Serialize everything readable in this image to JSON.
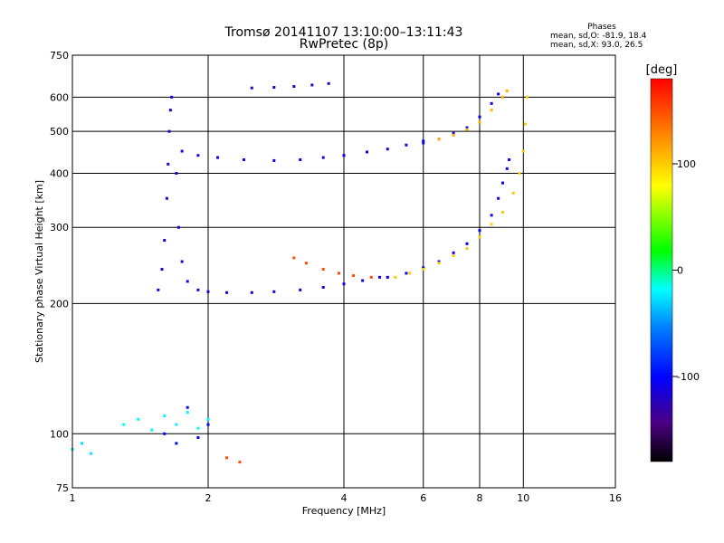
{
  "chart_data": {
    "type": "scatter",
    "title": "Tromsø 20141107 13:10:00–13:11:43",
    "subtitle": "RwPretec (8p)",
    "xlabel": "Frequency [MHz]",
    "ylabel": "Stationary phase Virtual Height [km]",
    "x_scale": "log",
    "y_scale": "log",
    "xlim": [
      1,
      16
    ],
    "ylim": [
      75,
      750
    ],
    "x_ticks": [
      "1",
      "2",
      "4",
      "6",
      "8",
      "10",
      "16"
    ],
    "y_ticks": [
      "75",
      "100",
      "200",
      "300",
      "400",
      "500",
      "600",
      "750"
    ],
    "grid": true,
    "stats": {
      "heading": "Phases",
      "line_o": "mean, sd,O: -81.9, 18.4",
      "line_x": "mean, sd,X:  93.0, 26.5"
    },
    "colorbar": {
      "label": "[deg]",
      "range": [
        -180,
        180
      ],
      "ticks": [
        "100",
        "0",
        "-100"
      ]
    },
    "series": [
      {
        "points": [
          [
            1.55,
            215
          ],
          [
            1.58,
            240
          ],
          [
            1.6,
            280
          ],
          [
            1.62,
            350
          ],
          [
            1.63,
            420
          ],
          [
            1.64,
            500
          ],
          [
            1.65,
            560
          ],
          [
            1.66,
            600
          ],
          [
            1.7,
            400
          ],
          [
            1.72,
            300
          ],
          [
            1.75,
            250
          ],
          [
            1.8,
            225
          ],
          [
            1.9,
            215
          ],
          [
            2.0,
            213
          ],
          [
            2.2,
            212
          ],
          [
            2.5,
            212
          ],
          [
            2.8,
            213
          ],
          [
            3.2,
            215
          ],
          [
            3.6,
            218
          ],
          [
            4.0,
            222
          ],
          [
            4.4,
            226
          ],
          [
            4.8,
            230
          ]
        ],
        "phase": -115
      },
      {
        "points": [
          [
            1.75,
            450
          ],
          [
            1.9,
            440
          ],
          [
            2.1,
            435
          ],
          [
            2.4,
            430
          ],
          [
            2.8,
            428
          ],
          [
            3.2,
            430
          ],
          [
            3.6,
            435
          ],
          [
            4.0,
            440
          ],
          [
            4.5,
            448
          ],
          [
            5.0,
            455
          ],
          [
            5.5,
            465
          ],
          [
            6.0,
            475
          ]
        ],
        "phase": -110
      },
      {
        "points": [
          [
            2.5,
            630
          ],
          [
            2.8,
            632
          ],
          [
            3.1,
            635
          ],
          [
            3.4,
            640
          ],
          [
            3.7,
            645
          ]
        ],
        "phase": -120
      },
      {
        "points": [
          [
            3.1,
            255
          ],
          [
            3.3,
            248
          ],
          [
            3.6,
            240
          ],
          [
            3.9,
            235
          ],
          [
            4.2,
            232
          ],
          [
            4.6,
            230
          ],
          [
            5.0,
            230
          ]
        ],
        "phase": 150
      },
      {
        "points": [
          [
            5.0,
            230
          ],
          [
            5.5,
            235
          ],
          [
            6.0,
            242
          ],
          [
            6.5,
            250
          ],
          [
            7.0,
            262
          ],
          [
            7.5,
            275
          ],
          [
            8.0,
            295
          ],
          [
            8.5,
            320
          ],
          [
            8.8,
            350
          ],
          [
            9.0,
            380
          ],
          [
            9.2,
            410
          ],
          [
            9.3,
            430
          ]
        ],
        "phase": -105
      },
      {
        "points": [
          [
            5.2,
            230
          ],
          [
            5.6,
            235
          ],
          [
            6.0,
            240
          ],
          [
            6.5,
            248
          ],
          [
            7.0,
            258
          ],
          [
            7.5,
            268
          ],
          [
            8.0,
            285
          ],
          [
            8.5,
            305
          ],
          [
            9.0,
            325
          ],
          [
            9.5,
            360
          ],
          [
            9.8,
            400
          ],
          [
            10.0,
            450
          ],
          [
            10.1,
            520
          ],
          [
            10.2,
            600
          ]
        ],
        "phase": 100
      },
      {
        "points": [
          [
            6.0,
            470
          ],
          [
            6.5,
            480
          ],
          [
            7.0,
            495
          ],
          [
            7.5,
            510
          ],
          [
            8.0,
            540
          ],
          [
            8.5,
            580
          ],
          [
            8.8,
            610
          ]
        ],
        "phase": -110
      },
      {
        "points": [
          [
            6.5,
            480
          ],
          [
            7.0,
            490
          ],
          [
            7.5,
            505
          ],
          [
            8.0,
            525
          ],
          [
            8.5,
            560
          ],
          [
            9.0,
            600
          ],
          [
            9.2,
            620
          ]
        ],
        "phase": 110
      },
      {
        "points": [
          [
            1.3,
            105
          ],
          [
            1.4,
            108
          ],
          [
            1.5,
            102
          ],
          [
            1.6,
            110
          ],
          [
            1.7,
            105
          ],
          [
            1.8,
            112
          ],
          [
            1.9,
            103
          ],
          [
            2.0,
            108
          ]
        ],
        "phase": -20
      },
      {
        "points": [
          [
            1.6,
            100
          ],
          [
            1.7,
            95
          ],
          [
            1.8,
            115
          ],
          [
            1.9,
            98
          ],
          [
            2.0,
            105
          ]
        ],
        "phase": -100
      },
      {
        "points": [
          [
            1.0,
            92
          ],
          [
            1.05,
            95
          ],
          [
            1.1,
            90
          ]
        ],
        "phase": -25
      },
      {
        "points": [
          [
            2.2,
            88
          ],
          [
            2.35,
            86
          ]
        ],
        "phase": 150
      }
    ]
  }
}
